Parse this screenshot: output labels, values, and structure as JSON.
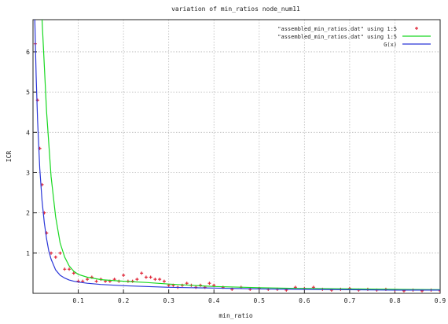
{
  "colors": {
    "series_points": "#e0283a",
    "series_line_1": "#18d820",
    "series_line_2": "#2a36d8",
    "grid": "#b9b9b9",
    "axis": "#222222"
  },
  "chart_data": {
    "type": "line",
    "title": "variation of min_ratios node_num11",
    "xlabel": "min_ratio",
    "ylabel": "ICR",
    "xlim": [
      0.0,
      0.9
    ],
    "ylim": [
      0,
      6.8
    ],
    "xticks": [
      "0.1",
      "0.2",
      "0.3",
      "0.4",
      "0.5",
      "0.6",
      "0.7",
      "0.8",
      "0.9"
    ],
    "xtick_values": [
      0.1,
      0.2,
      0.3,
      0.4,
      0.5,
      0.6,
      0.7,
      0.8,
      0.9
    ],
    "yticks": [
      "1",
      "2",
      "3",
      "4",
      "5",
      "6"
    ],
    "ytick_values": [
      1,
      2,
      3,
      4,
      5,
      6
    ],
    "grid": true,
    "legend_position": "top-right",
    "series": [
      {
        "name": "\"assembled_min_ratios.dat\" using 1:5",
        "style": "points",
        "x": [
          0.005,
          0.01,
          0.015,
          0.02,
          0.025,
          0.03,
          0.04,
          0.05,
          0.06,
          0.07,
          0.08,
          0.09,
          0.1,
          0.11,
          0.12,
          0.13,
          0.14,
          0.15,
          0.16,
          0.17,
          0.18,
          0.19,
          0.2,
          0.21,
          0.22,
          0.23,
          0.24,
          0.25,
          0.26,
          0.27,
          0.28,
          0.29,
          0.3,
          0.31,
          0.32,
          0.33,
          0.34,
          0.35,
          0.36,
          0.37,
          0.38,
          0.39,
          0.4,
          0.42,
          0.44,
          0.46,
          0.48,
          0.5,
          0.52,
          0.54,
          0.56,
          0.58,
          0.6,
          0.62,
          0.64,
          0.66,
          0.68,
          0.7,
          0.72,
          0.74,
          0.76,
          0.78,
          0.8,
          0.82,
          0.84,
          0.86,
          0.88,
          0.9
        ],
        "y": [
          6.2,
          4.8,
          3.6,
          2.7,
          2.0,
          1.5,
          1.0,
          0.9,
          1.0,
          0.6,
          0.6,
          0.5,
          0.3,
          0.3,
          0.35,
          0.4,
          0.3,
          0.35,
          0.3,
          0.3,
          0.35,
          0.3,
          0.45,
          0.3,
          0.3,
          0.35,
          0.5,
          0.4,
          0.4,
          0.35,
          0.35,
          0.3,
          0.2,
          0.2,
          0.15,
          0.2,
          0.25,
          0.2,
          0.15,
          0.2,
          0.15,
          0.25,
          0.2,
          0.15,
          0.1,
          0.15,
          0.1,
          0.12,
          0.1,
          0.1,
          0.08,
          0.15,
          0.12,
          0.15,
          0.1,
          0.08,
          0.1,
          0.12,
          0.08,
          0.1,
          0.08,
          0.1,
          0.08,
          0.06,
          0.08,
          0.06,
          0.08,
          0.06
        ]
      },
      {
        "name": "\"assembled_min_ratios.dat\" using 1:5",
        "style": "line",
        "x": [
          0.02,
          0.03,
          0.04,
          0.05,
          0.06,
          0.07,
          0.08,
          0.09,
          0.1,
          0.12,
          0.15,
          0.2,
          0.25,
          0.3,
          0.35,
          0.4,
          0.5,
          0.6,
          0.7,
          0.8,
          0.9
        ],
        "y": [
          6.8,
          4.5,
          2.9,
          1.9,
          1.25,
          0.9,
          0.68,
          0.55,
          0.47,
          0.4,
          0.34,
          0.3,
          0.27,
          0.23,
          0.2,
          0.17,
          0.14,
          0.12,
          0.11,
          0.1,
          0.09
        ]
      },
      {
        "name": "G(x)",
        "style": "line",
        "x": [
          0.004,
          0.007,
          0.01,
          0.015,
          0.02,
          0.025,
          0.03,
          0.035,
          0.04,
          0.05,
          0.06,
          0.07,
          0.08,
          0.09,
          0.1,
          0.12,
          0.15,
          0.2,
          0.25,
          0.3,
          0.35,
          0.4,
          0.5,
          0.6,
          0.7,
          0.8,
          0.9
        ],
        "y": [
          6.8,
          5.4,
          4.3,
          3.1,
          2.3,
          1.75,
          1.35,
          1.05,
          0.85,
          0.58,
          0.45,
          0.38,
          0.33,
          0.3,
          0.28,
          0.25,
          0.22,
          0.19,
          0.17,
          0.15,
          0.14,
          0.13,
          0.11,
          0.1,
          0.09,
          0.08,
          0.08
        ]
      }
    ]
  }
}
